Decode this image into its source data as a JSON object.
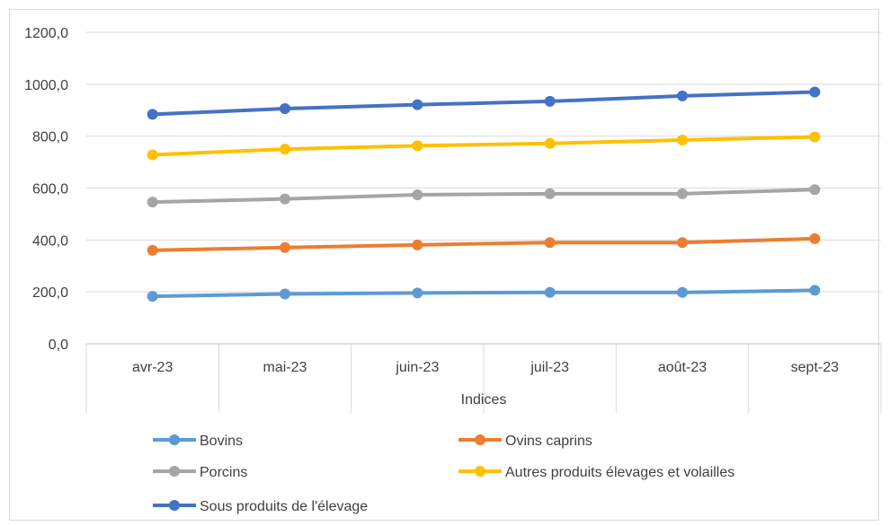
{
  "chart_data": {
    "type": "line",
    "categories": [
      "avr-23",
      "mai-23",
      "juin-23",
      "juil-23",
      "août-23",
      "sept-23"
    ],
    "series": [
      {
        "name": "Bovins",
        "color": "#5b9bd5",
        "values": [
          183,
          192,
          196,
          198,
          198,
          206
        ]
      },
      {
        "name": "Ovins caprins",
        "color": "#ed7d31",
        "values": [
          360,
          371,
          381,
          390,
          390,
          405
        ]
      },
      {
        "name": "Porcins",
        "color": "#a5a5a5",
        "values": [
          546,
          558,
          574,
          578,
          578,
          594
        ]
      },
      {
        "name": "Autres produits élevages et volailles",
        "color": "#ffc000",
        "values": [
          728,
          750,
          763,
          772,
          785,
          797
        ]
      },
      {
        "name": "Sous produits de l'élevage",
        "color": "#4472c4",
        "values": [
          884,
          906,
          921,
          934,
          955,
          970
        ]
      }
    ],
    "title": "",
    "xlabel": "Indices",
    "ylabel": "",
    "ylim": [
      0,
      1200
    ],
    "yticks": [
      "0,0",
      "200,0",
      "400,0",
      "600,0",
      "800,0",
      "1000,0",
      "1200,0"
    ],
    "grid": true,
    "legend_position": "bottom"
  }
}
